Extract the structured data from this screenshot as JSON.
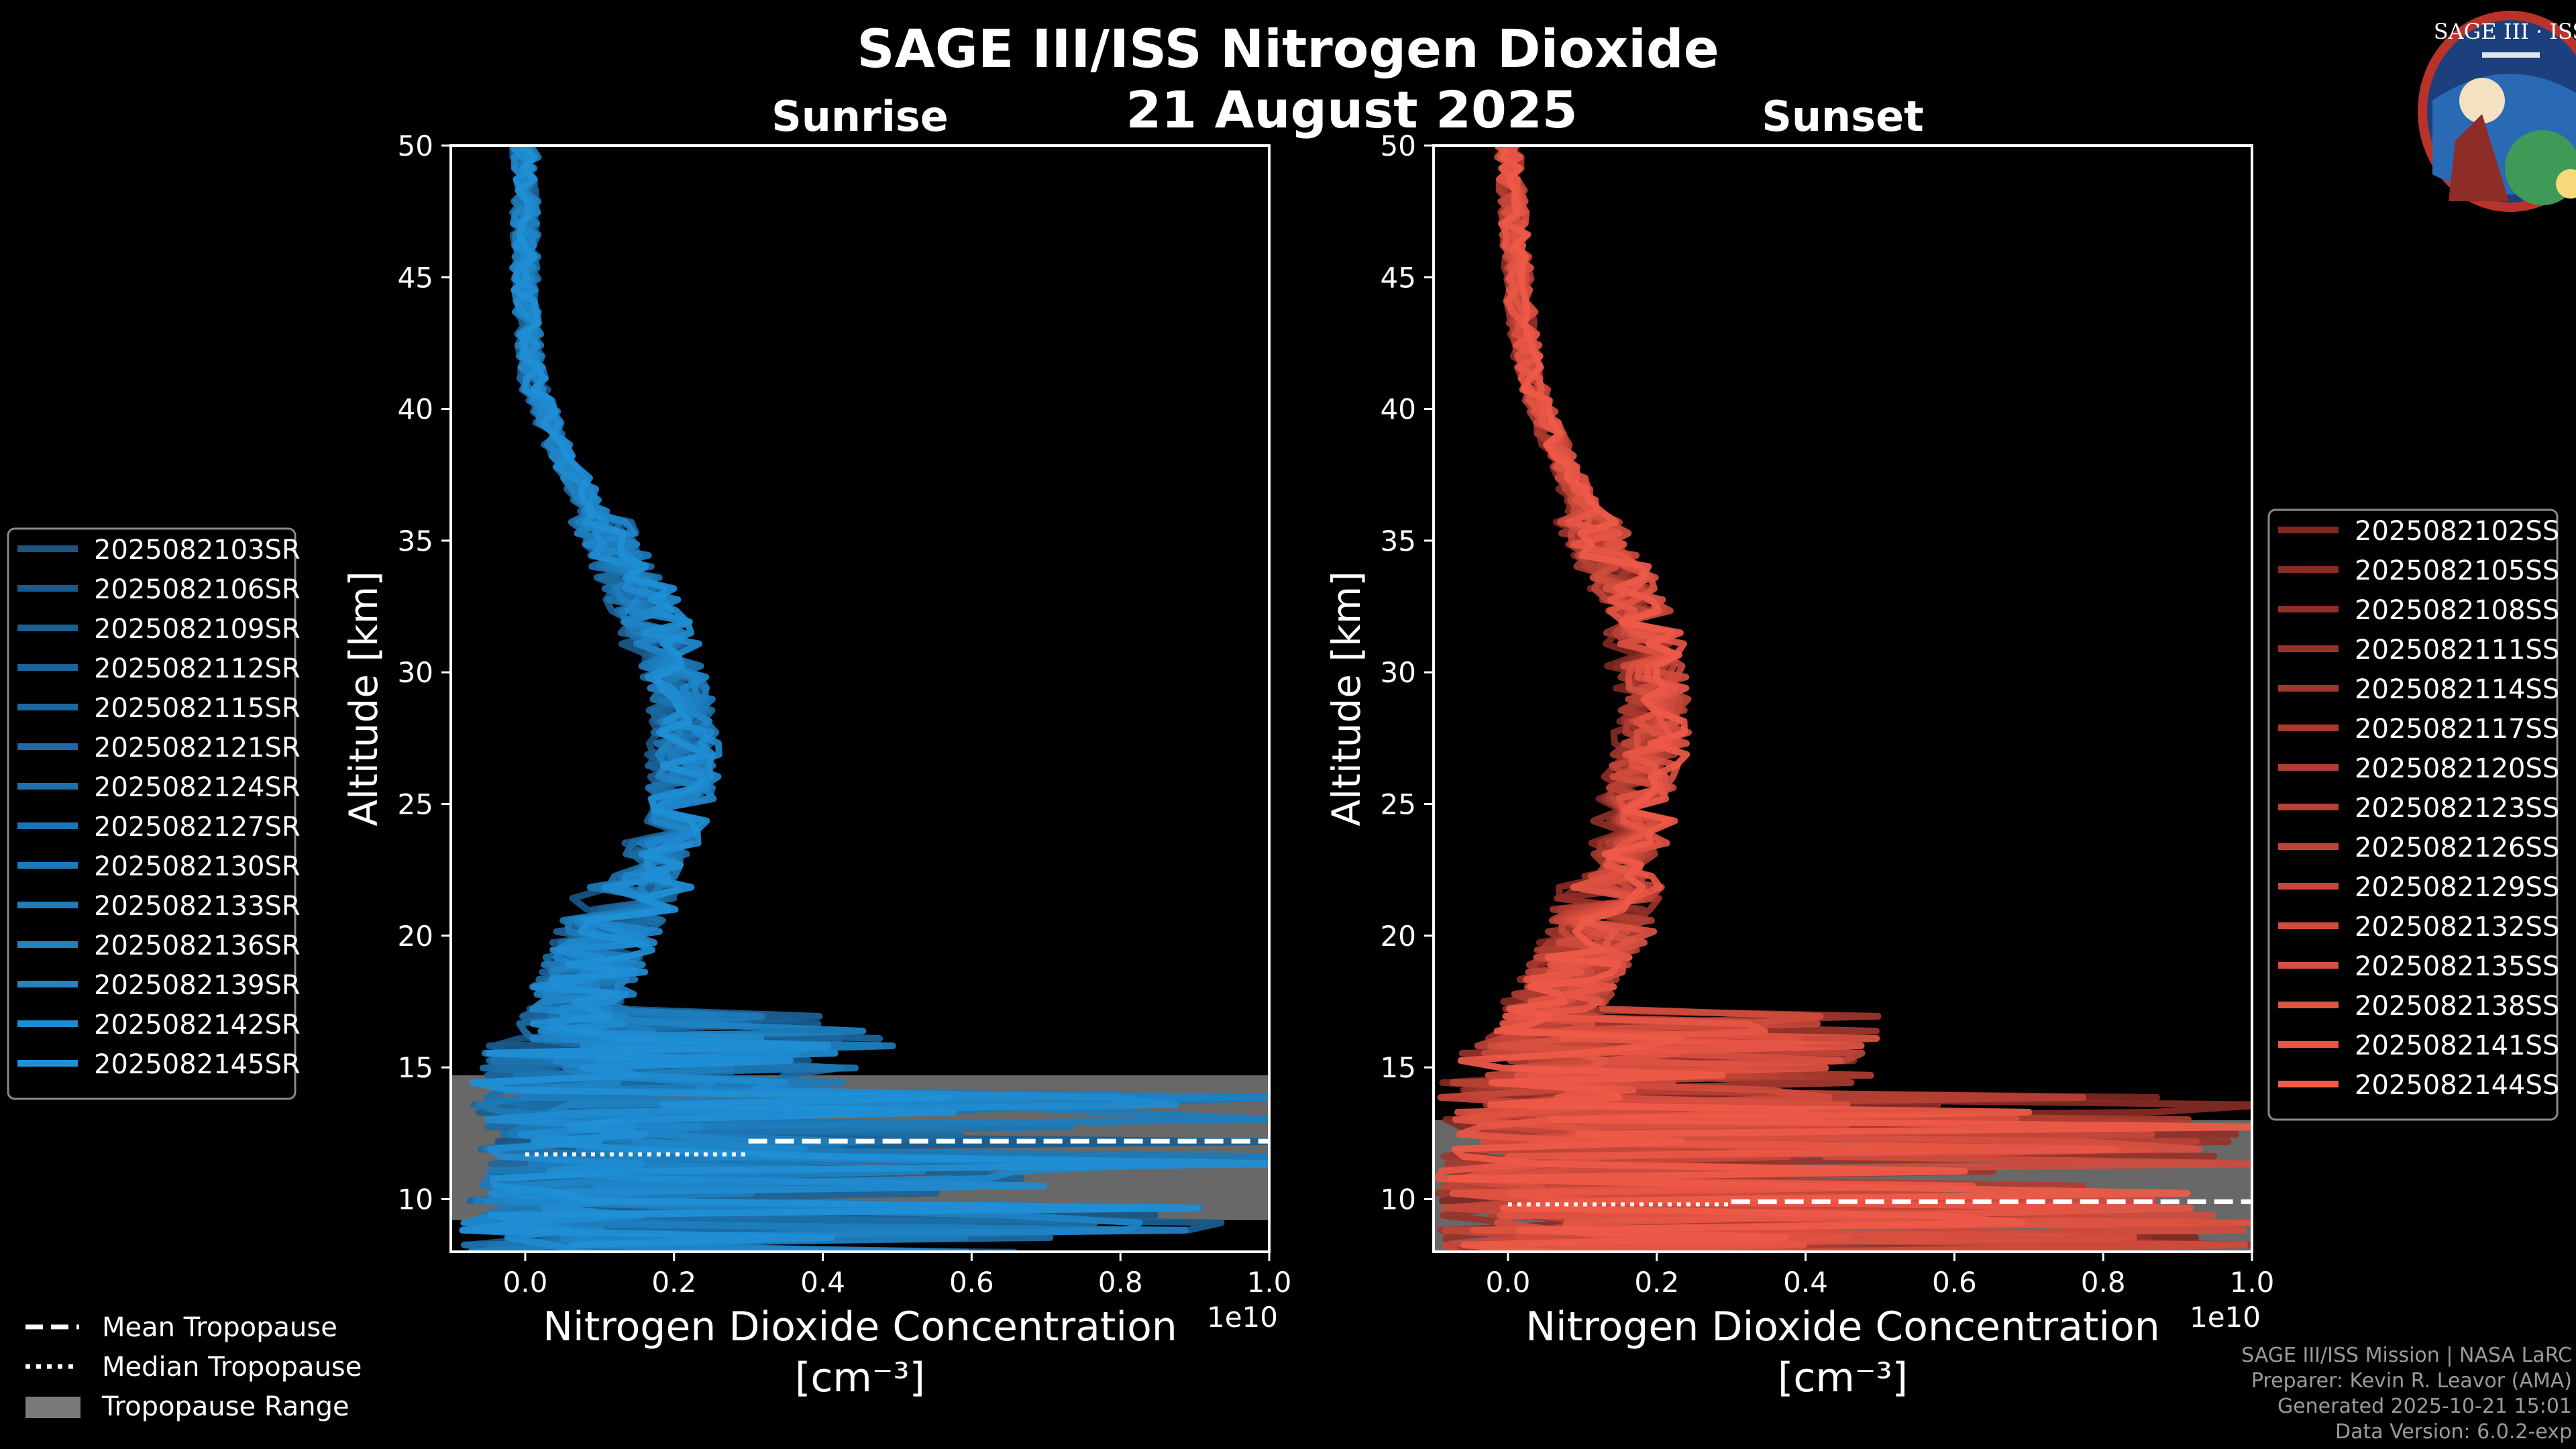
{
  "title": "SAGE III/ISS Nitrogen Dioxide",
  "date": "21 August 2025",
  "logo": {
    "text": "SAGE III · ISS"
  },
  "credits": [
    "SAGE III/ISS Mission | NASA LaRC",
    "Preparer: Kevin R. Leavor (AMA)",
    "Generated 2025-10-21 15:01",
    "Data Version: 6.0.2-exp"
  ],
  "shared_legend": [
    {
      "label": "Mean Tropopause",
      "style": "dashed"
    },
    {
      "label": "Median Tropopause",
      "style": "dotted"
    },
    {
      "label": "Tropopause Range",
      "style": "patch"
    }
  ],
  "colors": {
    "background": "#000000",
    "sunrise": "#1f8fd6",
    "sunset": "#ef5a48",
    "tropopause_range": "#7a7a7a"
  },
  "chart_data": [
    {
      "type": "line",
      "title": "Sunrise",
      "xlabel": "Nitrogen Dioxide Concentration",
      "xunit": "[cm⁻³]",
      "x_multiplier": "1e10",
      "ylabel": "Altitude [km]",
      "xlim": [
        -0.1,
        1.0
      ],
      "ylim": [
        8,
        50
      ],
      "xticks": [
        0.0,
        0.2,
        0.4,
        0.6,
        0.8,
        1.0
      ],
      "yticks": [
        10,
        15,
        20,
        25,
        30,
        35,
        40,
        45,
        50
      ],
      "tropopause": {
        "mean": 12.2,
        "median": 11.7,
        "range": [
          9.2,
          14.7
        ]
      },
      "legend": [
        "2025082103SR",
        "2025082106SR",
        "2025082109SR",
        "2025082112SR",
        "2025082115SR",
        "2025082121SR",
        "2025082124SR",
        "2025082127SR",
        "2025082130SR",
        "2025082133SR",
        "2025082136SR",
        "2025082139SR",
        "2025082142SR",
        "2025082145SR"
      ],
      "mean_profile": {
        "altitude": [
          50,
          47,
          44,
          41,
          38,
          35,
          32,
          29,
          26,
          23,
          20,
          17,
          15,
          13,
          11,
          9
        ],
        "value": [
          0.0,
          0.0,
          0.0,
          0.01,
          0.05,
          0.11,
          0.16,
          0.2,
          0.2,
          0.17,
          0.1,
          0.06,
          0.04,
          0.05,
          0.05,
          0.03
        ]
      }
    },
    {
      "type": "line",
      "title": "Sunset",
      "xlabel": "Nitrogen Dioxide Concentration",
      "xunit": "[cm⁻³]",
      "x_multiplier": "1e10",
      "ylabel": "Altitude [km]",
      "xlim": [
        -0.1,
        1.0
      ],
      "ylim": [
        8,
        50
      ],
      "xticks": [
        0.0,
        0.2,
        0.4,
        0.6,
        0.8,
        1.0
      ],
      "yticks": [
        10,
        15,
        20,
        25,
        30,
        35,
        40,
        45,
        50
      ],
      "tropopause": {
        "mean": 9.9,
        "median": 9.8,
        "range": [
          8.0,
          13.0
        ]
      },
      "legend": [
        "2025082102SS",
        "2025082105SS",
        "2025082108SS",
        "2025082111SS",
        "2025082114SS",
        "2025082117SS",
        "2025082120SS",
        "2025082123SS",
        "2025082126SS",
        "2025082129SS",
        "2025082132SS",
        "2025082135SS",
        "2025082138SS",
        "2025082141SS",
        "2025082144SS"
      ],
      "mean_profile": {
        "altitude": [
          50,
          47,
          44,
          41,
          38,
          35,
          32,
          29,
          26,
          23,
          20,
          17,
          15,
          13,
          11,
          9
        ],
        "value": [
          0.0,
          0.01,
          0.02,
          0.04,
          0.09,
          0.15,
          0.22,
          0.25,
          0.22,
          0.2,
          0.15,
          0.07,
          0.04,
          0.03,
          0.03,
          0.03
        ]
      }
    }
  ]
}
